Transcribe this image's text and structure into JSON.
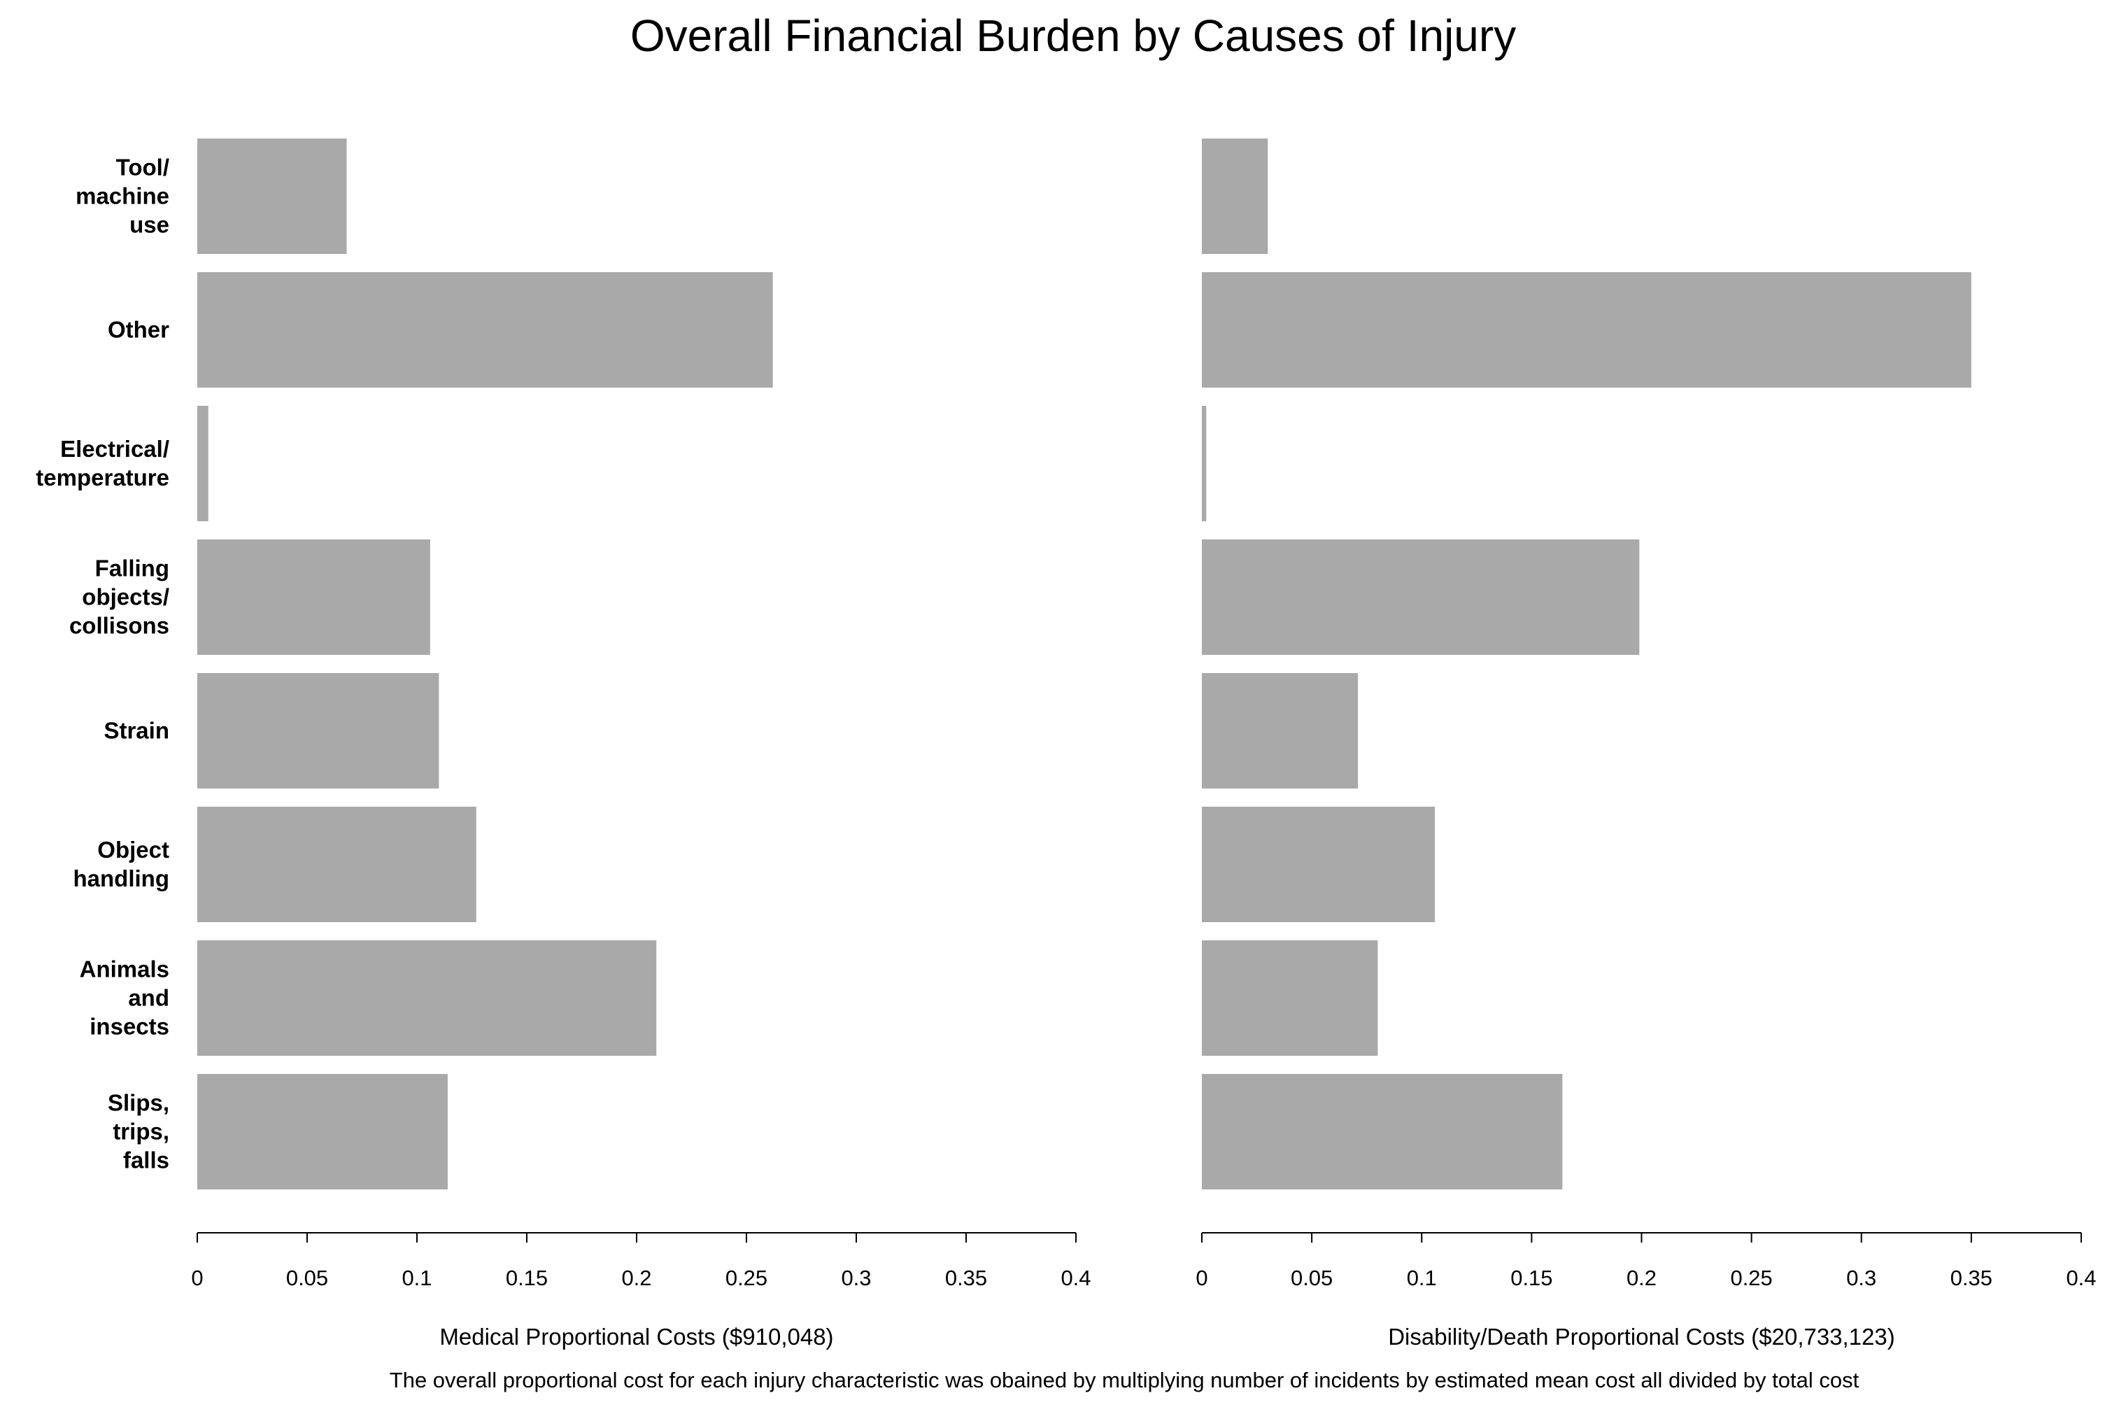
{
  "chart_data": [
    {
      "type": "bar",
      "orientation": "horizontal",
      "title": "Overall Financial Burden by Causes of Injury",
      "categories": [
        "Tool/\nmachine\nuse",
        "Other",
        "Electrical/\ntemperature",
        "Falling\nobjects/\ncollisons",
        "Strain",
        "Object\nhandling",
        "Animals\nand\ninsects",
        "Slips,\ntrips,\nfalls"
      ],
      "values": [
        0.068,
        0.262,
        0.005,
        0.106,
        0.11,
        0.127,
        0.209,
        0.114
      ],
      "xlabel": "Medical Proportional Costs ($910,048)",
      "ylabel": "",
      "xlim": [
        0,
        0.4
      ],
      "xticks": [
        0,
        0.05,
        0.1,
        0.15,
        0.2,
        0.25,
        0.3,
        0.35,
        0.4
      ],
      "xtick_labels": [
        "0",
        "0.05",
        "0.1",
        "0.15",
        "0.2",
        "0.25",
        "0.3",
        "0.35",
        "0.4"
      ],
      "bar_color": "#a9a9a9",
      "grid": false
    },
    {
      "type": "bar",
      "orientation": "horizontal",
      "categories": [
        "Tool/\nmachine\nuse",
        "Other",
        "Electrical/\ntemperature",
        "Falling\nobjects/\ncollisons",
        "Strain",
        "Object\nhandling",
        "Animals\nand\ninsects",
        "Slips,\ntrips,\nfalls"
      ],
      "values": [
        0.03,
        0.35,
        0.002,
        0.199,
        0.071,
        0.106,
        0.08,
        0.164
      ],
      "xlabel": "Disability/Death Proportional Costs ($20,733,123)",
      "ylabel": "",
      "xlim": [
        0,
        0.4
      ],
      "xticks": [
        0,
        0.05,
        0.1,
        0.15,
        0.2,
        0.25,
        0.3,
        0.35,
        0.4
      ],
      "xtick_labels": [
        "0",
        "0.05",
        "0.1",
        "0.15",
        "0.2",
        "0.25",
        "0.3",
        "0.35",
        "0.4"
      ],
      "bar_color": "#a9a9a9",
      "grid": false
    }
  ],
  "caption": "The overall proportional cost for each injury characteristic was obained by multiplying number of incidents by estimated mean cost all divided by total cost"
}
